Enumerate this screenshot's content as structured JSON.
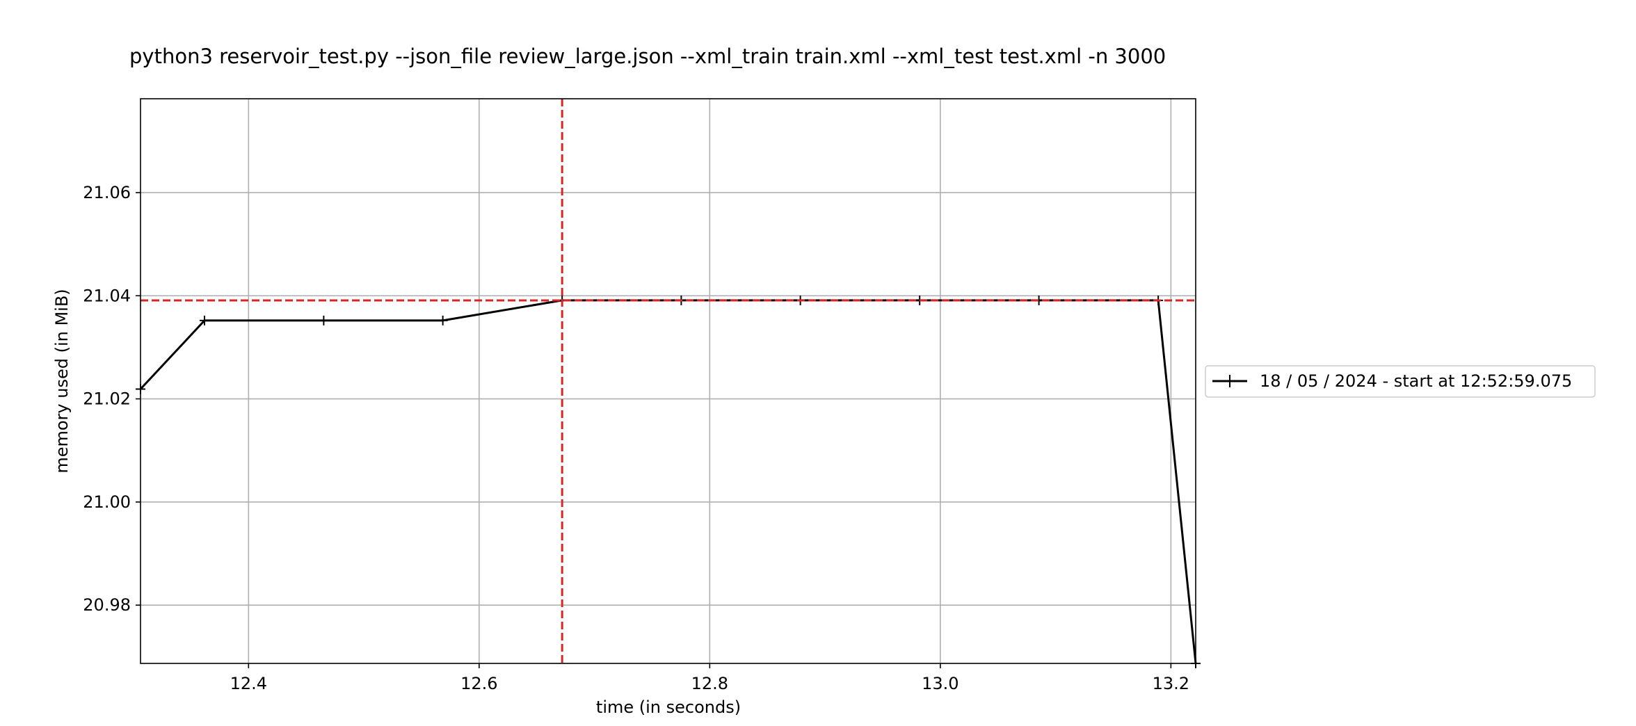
{
  "chart_data": {
    "type": "line",
    "title": "python3 reservoir_test.py --json_file review_large.json --xml_train train.xml --xml_test test.xml -n 3000",
    "xlabel": "time (in seconds)",
    "ylabel": "memory used (in MiB)",
    "xlim": [
      12.3063,
      13.2215
    ],
    "ylim": [
      20.9687,
      21.0782
    ],
    "xticks": [
      12.4,
      12.6,
      12.8,
      13.0,
      13.2
    ],
    "xtick_labels": [
      "12.4",
      "12.6",
      "12.8",
      "13.0",
      "13.2"
    ],
    "yticks": [
      20.98,
      21.0,
      21.02,
      21.04,
      21.06
    ],
    "ytick_labels": [
      "20.98",
      "21.00",
      "21.02",
      "21.04",
      "21.06"
    ],
    "grid": true,
    "legend_position": "right",
    "series": [
      {
        "name": "18 / 05 / 2024 - start at 12:52:59.075",
        "color": "#000000",
        "marker": "+",
        "x": [
          12.3063,
          12.3618,
          12.4652,
          12.5685,
          12.672,
          12.7753,
          12.8786,
          12.9821,
          13.0855,
          13.189,
          13.2215
        ],
        "y": [
          21.0219,
          21.0352,
          21.0352,
          21.0352,
          21.0391,
          21.0391,
          21.0391,
          21.0391,
          21.0391,
          21.0391,
          20.9687
        ]
      }
    ],
    "annotations": [
      {
        "type": "hline",
        "y": 21.0391,
        "color": "#d62728",
        "style": "dashed"
      },
      {
        "type": "vline",
        "x": 12.672,
        "color": "#d62728",
        "style": "dashed"
      }
    ]
  }
}
